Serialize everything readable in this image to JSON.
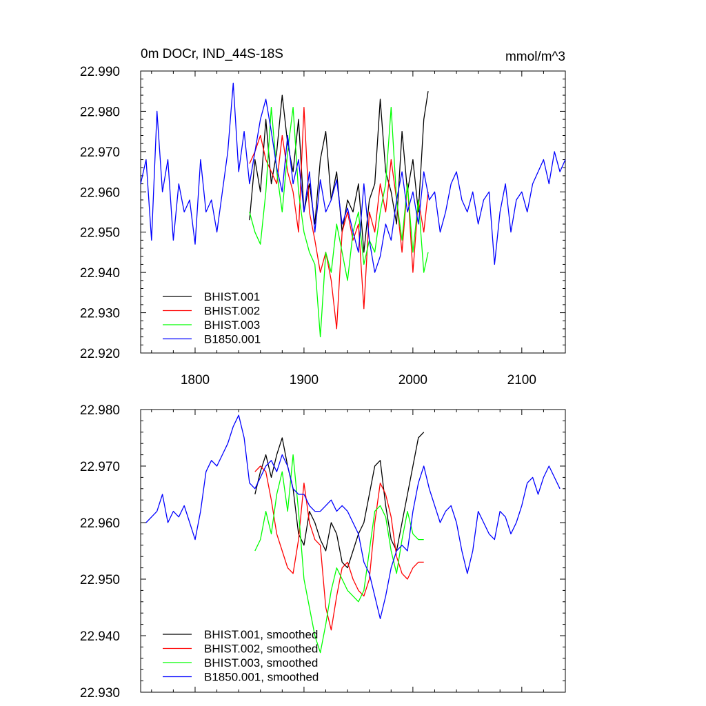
{
  "chart_data": [
    {
      "type": "line",
      "title": "0m DOCr, IND_44S-18S",
      "units": "mmol/m^3",
      "xlim": [
        1750,
        2140
      ],
      "ylim": [
        22.92,
        22.99
      ],
      "xticks": [
        1800,
        1900,
        2000,
        2100
      ],
      "xtick_labels": [
        "1800",
        "1900",
        "2000",
        "2100"
      ],
      "yticks": [
        22.92,
        22.93,
        22.94,
        22.95,
        22.96,
        22.97,
        22.98,
        22.99
      ],
      "ytick_labels": [
        "22.920",
        "22.930",
        "22.940",
        "22.950",
        "22.960",
        "22.970",
        "22.980",
        "22.990"
      ],
      "legend_position": "bottom-left",
      "series": [
        {
          "name": "BHIST.001",
          "color": "#000000",
          "x": [
            1850,
            1855,
            1860,
            1865,
            1870,
            1875,
            1880,
            1885,
            1890,
            1895,
            1900,
            1905,
            1910,
            1915,
            1920,
            1925,
            1930,
            1935,
            1940,
            1945,
            1950,
            1955,
            1960,
            1965,
            1970,
            1975,
            1980,
            1985,
            1990,
            1995,
            2000,
            2005,
            2010,
            2014
          ],
          "y": [
            22.953,
            22.968,
            22.96,
            22.978,
            22.962,
            22.97,
            22.984,
            22.972,
            22.965,
            22.978,
            22.955,
            22.962,
            22.952,
            22.968,
            22.975,
            22.958,
            22.965,
            22.95,
            22.958,
            22.955,
            22.962,
            22.945,
            22.958,
            22.962,
            22.983,
            22.965,
            22.96,
            22.952,
            22.975,
            22.96,
            22.968,
            22.955,
            22.978,
            22.985
          ]
        },
        {
          "name": "BHIST.002",
          "color": "#ff0000",
          "x": [
            1850,
            1855,
            1860,
            1865,
            1870,
            1875,
            1880,
            1885,
            1890,
            1895,
            1900,
            1905,
            1910,
            1915,
            1920,
            1925,
            1930,
            1935,
            1940,
            1945,
            1950,
            1955,
            1960,
            1965,
            1970,
            1975,
            1980,
            1985,
            1990,
            1995,
            2000,
            2005,
            2010,
            2014
          ],
          "y": [
            22.967,
            22.97,
            22.974,
            22.968,
            22.965,
            22.962,
            22.974,
            22.965,
            22.96,
            22.95,
            22.981,
            22.955,
            22.948,
            22.94,
            22.945,
            22.938,
            22.926,
            22.95,
            22.955,
            22.948,
            22.952,
            22.931,
            22.955,
            22.95,
            22.962,
            22.955,
            22.968,
            22.958,
            22.945,
            22.962,
            22.94,
            22.958,
            22.95,
            22.96
          ]
        },
        {
          "name": "BHIST.003",
          "color": "#00ff00",
          "x": [
            1850,
            1855,
            1860,
            1865,
            1870,
            1875,
            1880,
            1885,
            1890,
            1895,
            1900,
            1905,
            1910,
            1915,
            1920,
            1925,
            1930,
            1935,
            1940,
            1945,
            1950,
            1955,
            1960,
            1965,
            1970,
            1975,
            1980,
            1985,
            1990,
            1995,
            2000,
            2005,
            2010,
            2014
          ],
          "y": [
            22.955,
            22.95,
            22.947,
            22.96,
            22.981,
            22.965,
            22.955,
            22.97,
            22.981,
            22.96,
            22.95,
            22.945,
            22.942,
            22.924,
            22.945,
            22.94,
            22.952,
            22.945,
            22.938,
            22.95,
            22.955,
            22.942,
            22.948,
            22.945,
            22.955,
            22.962,
            22.981,
            22.958,
            22.948,
            22.962,
            22.945,
            22.958,
            22.94,
            22.945
          ]
        },
        {
          "name": "B1850.001",
          "color": "#0000ff",
          "x": [
            1750,
            1755,
            1760,
            1765,
            1770,
            1775,
            1780,
            1785,
            1790,
            1795,
            1800,
            1805,
            1810,
            1815,
            1820,
            1825,
            1830,
            1835,
            1840,
            1845,
            1850,
            1855,
            1860,
            1865,
            1870,
            1875,
            1880,
            1885,
            1890,
            1895,
            1900,
            1905,
            1910,
            1915,
            1920,
            1925,
            1930,
            1935,
            1940,
            1945,
            1950,
            1955,
            1960,
            1965,
            1970,
            1975,
            1980,
            1985,
            1990,
            1995,
            2000,
            2005,
            2010,
            2015,
            2020,
            2025,
            2030,
            2035,
            2040,
            2045,
            2050,
            2055,
            2060,
            2065,
            2070,
            2075,
            2080,
            2085,
            2090,
            2095,
            2100,
            2105,
            2110,
            2115,
            2120,
            2125,
            2130,
            2135,
            2140
          ],
          "y": [
            22.962,
            22.968,
            22.948,
            22.98,
            22.96,
            22.968,
            22.948,
            22.962,
            22.955,
            22.958,
            22.947,
            22.968,
            22.955,
            22.958,
            22.95,
            22.96,
            22.97,
            22.987,
            22.965,
            22.975,
            22.962,
            22.97,
            22.978,
            22.983,
            22.975,
            22.966,
            22.96,
            22.974,
            22.962,
            22.968,
            22.955,
            22.965,
            22.95,
            22.963,
            22.955,
            22.958,
            22.963,
            22.952,
            22.956,
            22.95,
            22.945,
            22.962,
            22.948,
            22.94,
            22.944,
            22.952,
            22.948,
            22.958,
            22.965,
            22.955,
            22.96,
            22.952,
            22.965,
            22.958,
            22.96,
            22.95,
            22.955,
            22.962,
            22.965,
            22.958,
            22.955,
            22.96,
            22.952,
            22.958,
            22.96,
            22.942,
            22.955,
            22.962,
            22.95,
            22.958,
            22.96,
            22.955,
            22.962,
            22.965,
            22.968,
            22.962,
            22.97,
            22.965,
            22.968
          ]
        }
      ]
    },
    {
      "type": "line",
      "title": "",
      "units": "",
      "xlim": [
        1750,
        2140
      ],
      "ylim": [
        22.93,
        22.98
      ],
      "xticks": [
        1800,
        1900,
        2000,
        2100
      ],
      "yticks": [
        22.93,
        22.94,
        22.95,
        22.96,
        22.97,
        22.98
      ],
      "ytick_labels": [
        "22.930",
        "22.940",
        "22.950",
        "22.960",
        "22.970",
        "22.980"
      ],
      "legend_position": "bottom-left",
      "series": [
        {
          "name": "BHIST.001, smoothed",
          "color": "#000000",
          "x": [
            1855,
            1860,
            1865,
            1870,
            1875,
            1880,
            1885,
            1890,
            1895,
            1900,
            1905,
            1910,
            1915,
            1920,
            1925,
            1930,
            1935,
            1940,
            1945,
            1950,
            1955,
            1960,
            1965,
            1970,
            1975,
            1980,
            1985,
            1990,
            1995,
            2000,
            2005,
            2010
          ],
          "y": [
            22.965,
            22.969,
            22.972,
            22.968,
            22.972,
            22.975,
            22.97,
            22.966,
            22.958,
            22.956,
            22.962,
            22.96,
            22.957,
            22.955,
            22.96,
            22.958,
            22.953,
            22.952,
            22.955,
            22.958,
            22.96,
            22.965,
            22.97,
            22.971,
            22.963,
            22.957,
            22.955,
            22.96,
            22.965,
            22.97,
            22.975,
            22.976
          ]
        },
        {
          "name": "BHIST.002, smoothed",
          "color": "#ff0000",
          "x": [
            1855,
            1860,
            1865,
            1870,
            1875,
            1880,
            1885,
            1890,
            1895,
            1900,
            1905,
            1910,
            1915,
            1920,
            1925,
            1930,
            1935,
            1940,
            1945,
            1950,
            1955,
            1960,
            1965,
            1970,
            1975,
            1980,
            1985,
            1990,
            1995,
            2000,
            2005,
            2010
          ],
          "y": [
            22.969,
            22.97,
            22.969,
            22.964,
            22.958,
            22.955,
            22.952,
            22.951,
            22.957,
            22.967,
            22.96,
            22.957,
            22.956,
            22.945,
            22.941,
            22.947,
            22.952,
            22.953,
            22.95,
            22.948,
            22.947,
            22.95,
            22.96,
            22.967,
            22.965,
            22.961,
            22.954,
            22.951,
            22.95,
            22.952,
            22.953,
            22.953
          ]
        },
        {
          "name": "BHIST.003, smoothed",
          "color": "#00ff00",
          "x": [
            1855,
            1860,
            1865,
            1870,
            1875,
            1880,
            1885,
            1890,
            1895,
            1900,
            1905,
            1910,
            1915,
            1920,
            1925,
            1930,
            1935,
            1940,
            1945,
            1950,
            1955,
            1960,
            1965,
            1970,
            1975,
            1980,
            1985,
            1990,
            1995,
            2000,
            2005,
            2010
          ],
          "y": [
            22.955,
            22.957,
            22.962,
            22.958,
            22.965,
            22.969,
            22.962,
            22.972,
            22.962,
            22.95,
            22.945,
            22.94,
            22.937,
            22.942,
            22.948,
            22.952,
            22.95,
            22.948,
            22.947,
            22.946,
            22.948,
            22.955,
            22.962,
            22.963,
            22.961,
            22.955,
            22.951,
            22.957,
            22.962,
            22.958,
            22.957,
            22.957
          ]
        },
        {
          "name": "B1850.001, smoothed",
          "color": "#0000ff",
          "x": [
            1755,
            1760,
            1765,
            1770,
            1775,
            1780,
            1785,
            1790,
            1795,
            1800,
            1805,
            1810,
            1815,
            1820,
            1825,
            1830,
            1835,
            1840,
            1845,
            1850,
            1855,
            1860,
            1865,
            1870,
            1875,
            1880,
            1885,
            1890,
            1895,
            1900,
            1905,
            1910,
            1915,
            1920,
            1925,
            1930,
            1935,
            1940,
            1945,
            1950,
            1955,
            1960,
            1965,
            1970,
            1975,
            1980,
            1985,
            1990,
            1995,
            2000,
            2005,
            2010,
            2015,
            2020,
            2025,
            2030,
            2035,
            2040,
            2045,
            2050,
            2055,
            2060,
            2065,
            2070,
            2075,
            2080,
            2085,
            2090,
            2095,
            2100,
            2105,
            2110,
            2115,
            2120,
            2125,
            2130,
            2135
          ],
          "y": [
            22.96,
            22.961,
            22.962,
            22.965,
            22.96,
            22.962,
            22.961,
            22.963,
            22.96,
            22.957,
            22.962,
            22.969,
            22.971,
            22.97,
            22.972,
            22.974,
            22.977,
            22.979,
            22.975,
            22.967,
            22.966,
            22.968,
            22.97,
            22.971,
            22.969,
            22.972,
            22.97,
            22.966,
            22.965,
            22.965,
            22.963,
            22.962,
            22.962,
            22.963,
            22.964,
            22.962,
            22.963,
            22.962,
            22.96,
            22.958,
            22.953,
            22.951,
            22.947,
            22.943,
            22.947,
            22.952,
            22.955,
            22.956,
            22.955,
            22.962,
            22.967,
            22.97,
            22.966,
            22.963,
            22.96,
            22.962,
            22.963,
            22.96,
            22.955,
            22.951,
            22.955,
            22.962,
            22.96,
            22.958,
            22.957,
            22.962,
            22.961,
            22.958,
            22.96,
            22.963,
            22.967,
            22.968,
            22.965,
            22.968,
            22.97,
            22.968,
            22.966
          ]
        }
      ]
    }
  ]
}
